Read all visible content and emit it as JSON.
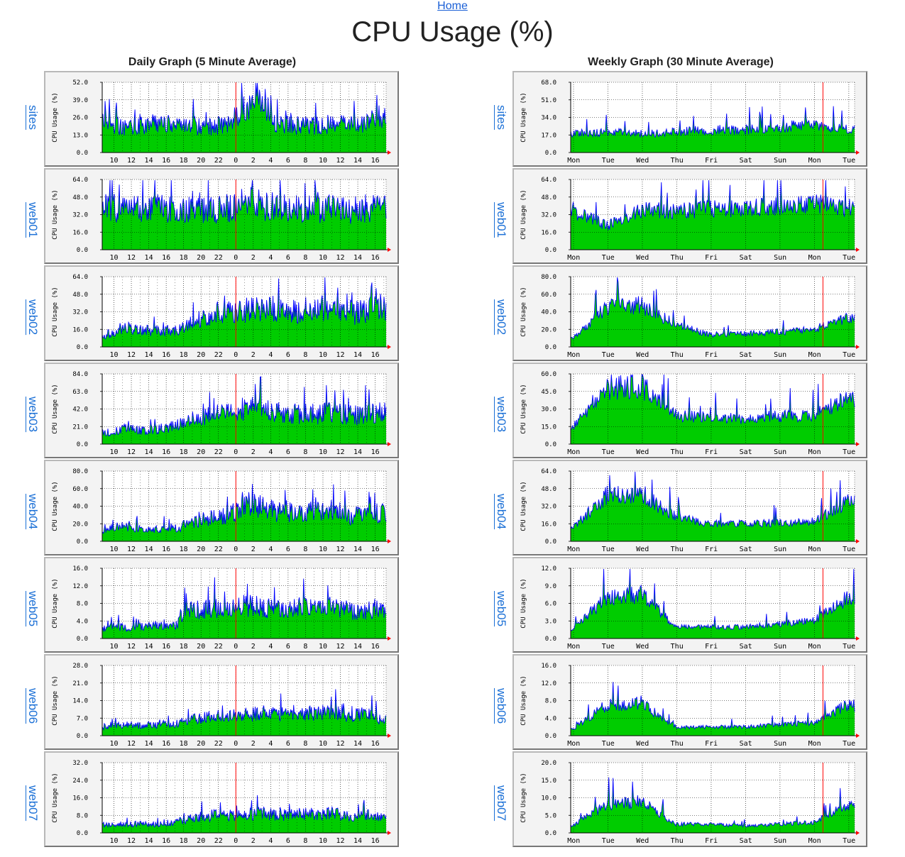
{
  "nav": {
    "home_label": "Home"
  },
  "page": {
    "title": "CPU Usage (%)"
  },
  "columns": {
    "daily": {
      "heading": "Daily Graph (5 Minute Average)"
    },
    "weekly": {
      "heading": "Weekly Graph (30 Minute Average)"
    }
  },
  "colors": {
    "fill": "#00cc00",
    "line": "#0000ff",
    "now_marker": "#ff0000",
    "grid": "#000000",
    "plot_bg": "#ffffff",
    "frame_bg": "#f3f3f3"
  },
  "hosts": [
    {
      "name": "sites",
      "daily": {
        "ylabel": "CPU Usage (%)",
        "ymax": 52.0,
        "yticks": [
          "52.0",
          "39.0",
          "26.0",
          "13.0",
          "0.0"
        ]
      },
      "weekly": {
        "ylabel": "CPU Usage (%)",
        "ymax": 68.0,
        "yticks": [
          "68.0",
          "51.0",
          "34.0",
          "17.0",
          "0.0"
        ]
      }
    },
    {
      "name": "web01",
      "daily": {
        "ylabel": "CPU Usage (%)",
        "ymax": 64.0,
        "yticks": [
          "64.0",
          "48.0",
          "32.0",
          "16.0",
          "0.0"
        ]
      },
      "weekly": {
        "ylabel": "CPU Usage (%)",
        "ymax": 64.0,
        "yticks": [
          "64.0",
          "48.0",
          "32.0",
          "16.0",
          "0.0"
        ]
      }
    },
    {
      "name": "web02",
      "daily": {
        "ylabel": "CPU Usage (%)",
        "ymax": 64.0,
        "yticks": [
          "64.0",
          "48.0",
          "32.0",
          "16.0",
          "0.0"
        ]
      },
      "weekly": {
        "ylabel": "CPU Usage (%)",
        "ymax": 80.0,
        "yticks": [
          "80.0",
          "60.0",
          "40.0",
          "20.0",
          "0.0"
        ]
      }
    },
    {
      "name": "web03",
      "daily": {
        "ylabel": "CPU Usage (%)",
        "ymax": 84.0,
        "yticks": [
          "84.0",
          "63.0",
          "42.0",
          "21.0",
          "0.0"
        ]
      },
      "weekly": {
        "ylabel": "CPU Usage (%)",
        "ymax": 60.0,
        "yticks": [
          "60.0",
          "45.0",
          "30.0",
          "15.0",
          "0.0"
        ]
      }
    },
    {
      "name": "web04",
      "daily": {
        "ylabel": "CPU Usage (%)",
        "ymax": 80.0,
        "yticks": [
          "80.0",
          "60.0",
          "40.0",
          "20.0",
          "0.0"
        ]
      },
      "weekly": {
        "ylabel": "CPU Usage (%)",
        "ymax": 64.0,
        "yticks": [
          "64.0",
          "48.0",
          "32.0",
          "16.0",
          "0.0"
        ]
      }
    },
    {
      "name": "web05",
      "daily": {
        "ylabel": "CPU Usage (%)",
        "ymax": 16.0,
        "yticks": [
          "16.0",
          "12.0",
          "8.0",
          "4.0",
          "0.0"
        ]
      },
      "weekly": {
        "ylabel": "CPU Usage (%)",
        "ymax": 12.0,
        "yticks": [
          "12.0",
          "9.0",
          "6.0",
          "3.0",
          "0.0"
        ]
      }
    },
    {
      "name": "web06",
      "daily": {
        "ylabel": "CPU Usage (%)",
        "ymax": 28.0,
        "yticks": [
          "28.0",
          "21.0",
          "14.0",
          "7.0",
          "0.0"
        ]
      },
      "weekly": {
        "ylabel": "CPU Usage (%)",
        "ymax": 16.0,
        "yticks": [
          "16.0",
          "12.0",
          "8.0",
          "4.0",
          "0.0"
        ]
      }
    },
    {
      "name": "web07",
      "daily": {
        "ylabel": "CPU Usage (%)",
        "ymax": 32.0,
        "yticks": [
          "32.0",
          "24.0",
          "16.0",
          "8.0",
          "0.0"
        ]
      },
      "weekly": {
        "ylabel": "CPU Usage (%)",
        "ymax": 20.0,
        "yticks": [
          "20.0",
          "15.0",
          "10.0",
          "5.0",
          "0.0"
        ]
      }
    }
  ],
  "chart_data": [
    {
      "type": "area",
      "chart": "daily",
      "x_ticks": [
        "10",
        "12",
        "14",
        "16",
        "18",
        "20",
        "22",
        "0",
        "2",
        "4",
        "6",
        "8",
        "10",
        "12",
        "14",
        "16"
      ],
      "now_marker_at": "0",
      "grid": true,
      "series_by_host": {
        "sites": {
          "anchors": [
            [
              9,
              24
            ],
            [
              10,
              22
            ],
            [
              12,
              18
            ],
            [
              14,
              20
            ],
            [
              16,
              22
            ],
            [
              18,
              20
            ],
            [
              20,
              20
            ],
            [
              22,
              19
            ],
            [
              0,
              22
            ],
            [
              2,
              33
            ],
            [
              3,
              40
            ],
            [
              4,
              36
            ],
            [
              5,
              22
            ],
            [
              8,
              20
            ],
            [
              10,
              20
            ],
            [
              12,
              21
            ],
            [
              14,
              20
            ],
            [
              16,
              22
            ],
            [
              17,
              26
            ]
          ]
        },
        "web01": {
          "anchors": [
            [
              9,
              38
            ],
            [
              12,
              38
            ],
            [
              14,
              37
            ],
            [
              16,
              38
            ],
            [
              18,
              37
            ],
            [
              20,
              37
            ],
            [
              22,
              36
            ],
            [
              0,
              38
            ],
            [
              2,
              44
            ],
            [
              4,
              40
            ],
            [
              6,
              38
            ],
            [
              8,
              37
            ],
            [
              10,
              37
            ],
            [
              12,
              37
            ],
            [
              14,
              36
            ],
            [
              16,
              38
            ],
            [
              17,
              38
            ]
          ]
        },
        "web02": {
          "anchors": [
            [
              9,
              10
            ],
            [
              10,
              12
            ],
            [
              12,
              18
            ],
            [
              14,
              16
            ],
            [
              16,
              14
            ],
            [
              18,
              16
            ],
            [
              20,
              24
            ],
            [
              22,
              30
            ],
            [
              0,
              32
            ],
            [
              2,
              34
            ],
            [
              4,
              36
            ],
            [
              6,
              34
            ],
            [
              8,
              32
            ],
            [
              10,
              32
            ],
            [
              12,
              33
            ],
            [
              14,
              30
            ],
            [
              16,
              34
            ],
            [
              17,
              36
            ]
          ]
        },
        "web03": {
          "anchors": [
            [
              9,
              14
            ],
            [
              10,
              14
            ],
            [
              12,
              18
            ],
            [
              14,
              16
            ],
            [
              16,
              18
            ],
            [
              18,
              22
            ],
            [
              20,
              30
            ],
            [
              22,
              36
            ],
            [
              0,
              36
            ],
            [
              2,
              44
            ],
            [
              4,
              42
            ],
            [
              6,
              36
            ],
            [
              8,
              36
            ],
            [
              10,
              36
            ],
            [
              12,
              38
            ],
            [
              14,
              34
            ],
            [
              16,
              36
            ],
            [
              17,
              38
            ]
          ]
        },
        "web04": {
          "anchors": [
            [
              9,
              12
            ],
            [
              10,
              14
            ],
            [
              12,
              18
            ],
            [
              14,
              14
            ],
            [
              16,
              14
            ],
            [
              18,
              16
            ],
            [
              20,
              22
            ],
            [
              22,
              28
            ],
            [
              0,
              30
            ],
            [
              2,
              42
            ],
            [
              4,
              38
            ],
            [
              6,
              32
            ],
            [
              8,
              34
            ],
            [
              10,
              34
            ],
            [
              12,
              36
            ],
            [
              14,
              28
            ],
            [
              16,
              34
            ],
            [
              17,
              32
            ]
          ]
        },
        "web05": {
          "anchors": [
            [
              9,
              2
            ],
            [
              10,
              3
            ],
            [
              12,
              2.5
            ],
            [
              14,
              2.8
            ],
            [
              16,
              3
            ],
            [
              18,
              3
            ],
            [
              18.3,
              5.5
            ],
            [
              20,
              6.5
            ],
            [
              22,
              7
            ],
            [
              0,
              7
            ],
            [
              2,
              7.5
            ],
            [
              4,
              7
            ],
            [
              6,
              6.5
            ],
            [
              8,
              7
            ],
            [
              10,
              7
            ],
            [
              12,
              7.5
            ],
            [
              14,
              6
            ],
            [
              16,
              6.5
            ],
            [
              17,
              7
            ]
          ]
        },
        "web06": {
          "anchors": [
            [
              9,
              3.5
            ],
            [
              10,
              4
            ],
            [
              12,
              4.5
            ],
            [
              14,
              4
            ],
            [
              16,
              4.5
            ],
            [
              18,
              5
            ],
            [
              20,
              6.5
            ],
            [
              22,
              7.5
            ],
            [
              0,
              8
            ],
            [
              2,
              8.5
            ],
            [
              4,
              9
            ],
            [
              6,
              8.5
            ],
            [
              8,
              8.5
            ],
            [
              10,
              9
            ],
            [
              12,
              9.5
            ],
            [
              14,
              8
            ],
            [
              16,
              9
            ],
            [
              17,
              7
            ]
          ]
        },
        "web07": {
          "anchors": [
            [
              9,
              3.5
            ],
            [
              10,
              4
            ],
            [
              12,
              4
            ],
            [
              14,
              4
            ],
            [
              16,
              4
            ],
            [
              18,
              5
            ],
            [
              20,
              7
            ],
            [
              22,
              8
            ],
            [
              0,
              8
            ],
            [
              2,
              8.5
            ],
            [
              4,
              9
            ],
            [
              6,
              8
            ],
            [
              8,
              8.5
            ],
            [
              10,
              8.5
            ],
            [
              12,
              9
            ],
            [
              14,
              7
            ],
            [
              16,
              8
            ],
            [
              17,
              7
            ]
          ]
        }
      }
    },
    {
      "type": "area",
      "chart": "weekly",
      "x_ticks": [
        "Mon",
        "Tue",
        "Wed",
        "Thu",
        "Fri",
        "Sat",
        "Sun",
        "Mon",
        "Tue"
      ],
      "now_marker_at": "Mon",
      "grid": true,
      "series_by_host": {
        "sites": {
          "anchors": [
            [
              "Mon",
              18
            ],
            [
              "Tue",
              20
            ],
            [
              "Wed",
              18
            ],
            [
              "Thu",
              20
            ],
            [
              "Fri",
              22
            ],
            [
              "Sat",
              22
            ],
            [
              "Sun",
              24
            ],
            [
              "Mon",
              28
            ],
            [
              "Tue",
              22
            ]
          ]
        },
        "web01": {
          "anchors": [
            [
              "Mon",
              36
            ],
            [
              "Tue",
              22
            ],
            [
              "Wed",
              36
            ],
            [
              "Thu",
              36
            ],
            [
              "Fri",
              37
            ],
            [
              "Sat",
              38
            ],
            [
              "Sun",
              40
            ],
            [
              "Mon",
              42
            ],
            [
              "Tue",
              38
            ]
          ]
        },
        "web02": {
          "anchors": [
            [
              "Mon",
              10
            ],
            [
              "Tue",
              45
            ],
            [
              "Wed",
              48
            ],
            [
              "Thu",
              25
            ],
            [
              "Fri",
              14
            ],
            [
              "Sat",
              15
            ],
            [
              "Sun",
              17
            ],
            [
              "Mon",
              20
            ],
            [
              "Tue",
              32
            ]
          ]
        },
        "web03": {
          "anchors": [
            [
              "Mon",
              15
            ],
            [
              "Tue",
              48
            ],
            [
              "Wed",
              50
            ],
            [
              "Thu",
              25
            ],
            [
              "Fri",
              22
            ],
            [
              "Sat",
              22
            ],
            [
              "Sun",
              24
            ],
            [
              "Mon",
              24
            ],
            [
              "Tue",
              40
            ]
          ]
        },
        "web04": {
          "anchors": [
            [
              "Mon",
              12
            ],
            [
              "Tue",
              42
            ],
            [
              "Wed",
              44
            ],
            [
              "Thu",
              22
            ],
            [
              "Fri",
              16
            ],
            [
              "Sat",
              16
            ],
            [
              "Sun",
              17
            ],
            [
              "Mon",
              18
            ],
            [
              "Tue",
              36
            ]
          ]
        },
        "web05": {
          "anchors": [
            [
              "Mon",
              1.5
            ],
            [
              "Tue",
              7
            ],
            [
              "Wed",
              7.5
            ],
            [
              "Thu",
              2
            ],
            [
              "Fri",
              2
            ],
            [
              "Sat",
              2
            ],
            [
              "Sun",
              2.5
            ],
            [
              "Mon",
              3
            ],
            [
              "Tue",
              7
            ]
          ]
        },
        "web06": {
          "anchors": [
            [
              "Mon",
              1.5
            ],
            [
              "Tue",
              7
            ],
            [
              "Wed",
              7.5
            ],
            [
              "Thu",
              2
            ],
            [
              "Fri",
              2
            ],
            [
              "Sat",
              2
            ],
            [
              "Sun",
              2.5
            ],
            [
              "Mon",
              3
            ],
            [
              "Tue",
              7
            ]
          ]
        },
        "web07": {
          "anchors": [
            [
              "Mon",
              2
            ],
            [
              "Tue",
              8
            ],
            [
              "Wed",
              9
            ],
            [
              "Thu",
              2.5
            ],
            [
              "Fri",
              2.5
            ],
            [
              "Sat",
              2
            ],
            [
              "Sun",
              2.5
            ],
            [
              "Mon",
              3
            ],
            [
              "Tue",
              8
            ]
          ]
        }
      }
    }
  ]
}
